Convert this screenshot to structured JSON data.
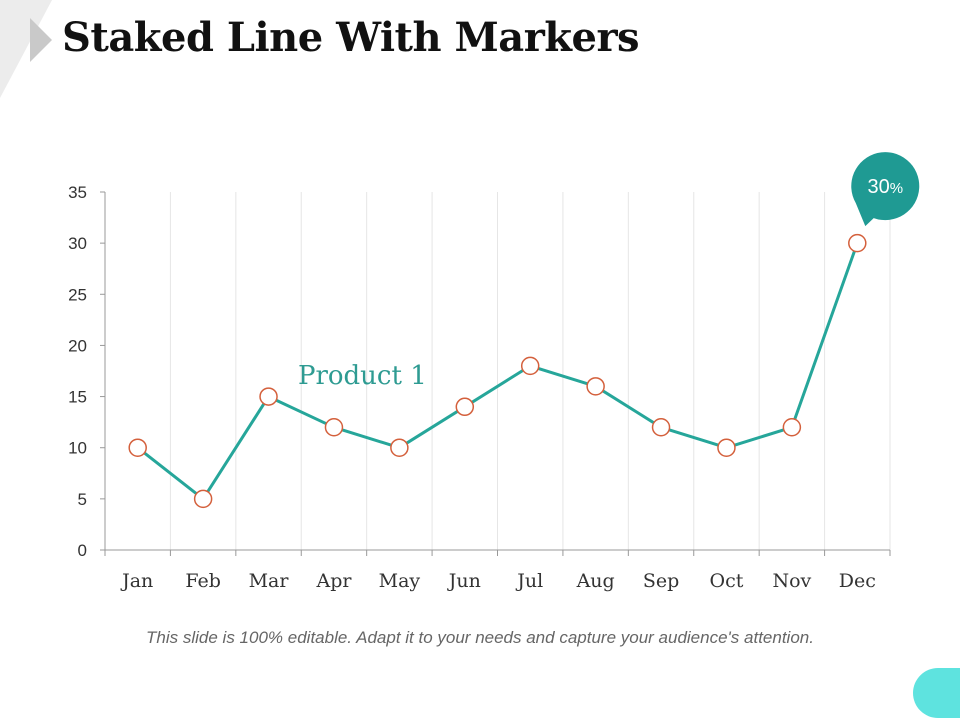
{
  "slide": {
    "title": "Staked Line With Markers",
    "footer": "This slide is 100% editable. Adapt it to your needs and capture your audience's attention."
  },
  "colors": {
    "line": "#26a69a",
    "marker_stroke": "#d4603c",
    "marker_fill": "#ffffff",
    "series_label": "#2e9b92",
    "callout": "#1f9a93",
    "gridline": "#e6e6e6",
    "axis": "#999999",
    "corner_light": "#ececec",
    "corner_dark": "#c9c9c9",
    "accent_blob": "#5ee3df"
  },
  "chart_data": {
    "type": "line",
    "title": "Staked Line With Markers",
    "categories": [
      "Jan",
      "Feb",
      "Mar",
      "Apr",
      "May",
      "Jun",
      "Jul",
      "Aug",
      "Sep",
      "Oct",
      "Nov",
      "Dec"
    ],
    "series": [
      {
        "name": "Product 1",
        "values": [
          10,
          5,
          15,
          12,
          10,
          14,
          18,
          16,
          12,
          10,
          12,
          30
        ]
      }
    ],
    "ylim": [
      0,
      35
    ],
    "yticks": [
      0,
      5,
      10,
      15,
      20,
      25,
      30,
      35
    ],
    "xlabel": "",
    "ylabel": "",
    "grid": "vertical",
    "callout": {
      "category": "Dec",
      "value_text": "30",
      "unit_text": "%"
    }
  }
}
